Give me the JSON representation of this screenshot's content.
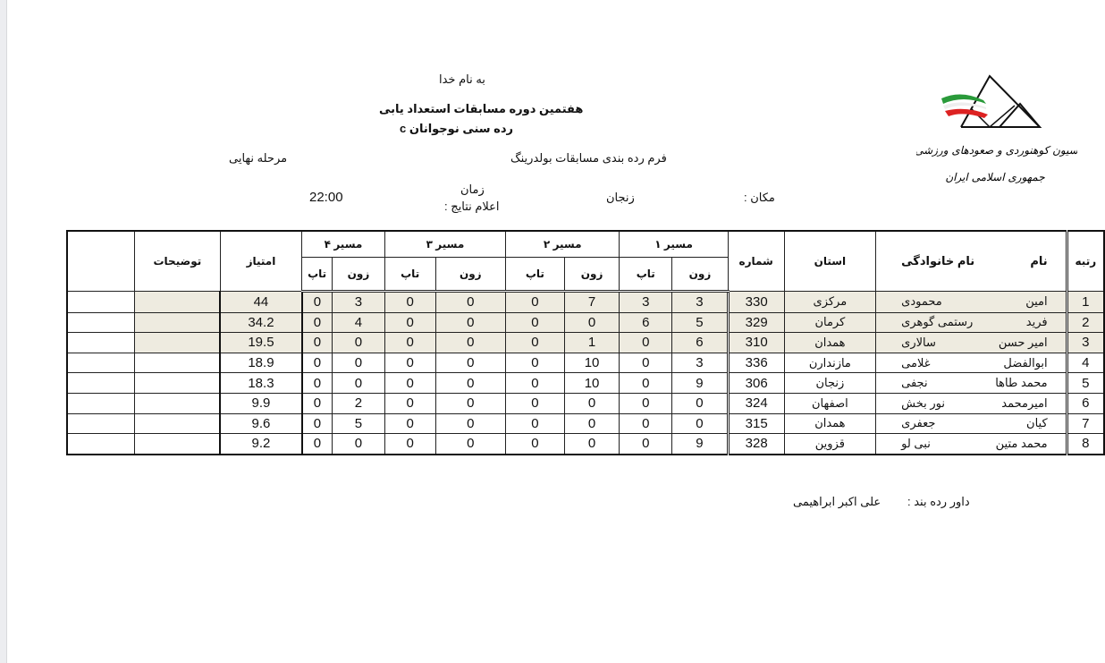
{
  "header": {
    "bismillah": "به نام خدا",
    "title": "هفتمین دوره مسابقات استعداد یابی",
    "subtitle": "رده سنی نوجوانان c",
    "form_title": "فرم رده بندی مسابقات بولدرینگ",
    "stage": "مرحله  نهایی",
    "location_label": "مکان :",
    "location_value": "زنجان",
    "time_label_1": "زمان",
    "time_label_2": "اعلام نتایج :",
    "time_value": "22:00",
    "logo_text_1": "فدراسیون کوهنوردی و صعودهای ورزشی",
    "logo_text_2": "جمهوری اسلامی ایران"
  },
  "table": {
    "headers": {
      "rank": "رتبه",
      "first_name": "نام",
      "last_name": "نام خانوادگی",
      "province": "استان",
      "number": "شماره",
      "route1": "مسیر ۱",
      "route2": "مسیر ۲",
      "route3": "مسیر ۳",
      "route4": "مسیر ۴",
      "zone": "زون",
      "top": "تاپ",
      "score": "امتیاز",
      "notes": "توضیحات"
    },
    "highlight_color": "#eeebe0",
    "rows": [
      {
        "rank": "1",
        "first": "امین",
        "last": "محمودی",
        "province": "مرکزی",
        "number": "330",
        "z1": "3",
        "t1": "3",
        "z2": "7",
        "t2": "0",
        "z3": "0",
        "t3": "0",
        "z4": "3",
        "t4": "0",
        "score": "44",
        "highlight": true
      },
      {
        "rank": "2",
        "first": "فرید",
        "last": "رستمی گوهری",
        "province": "کرمان",
        "number": "329",
        "z1": "5",
        "t1": "6",
        "z2": "0",
        "t2": "0",
        "z3": "0",
        "t3": "0",
        "z4": "4",
        "t4": "0",
        "score": "34.2",
        "highlight": true
      },
      {
        "rank": "3",
        "first": "امیر حسن",
        "last": "سالاری",
        "province": "همدان",
        "number": "310",
        "z1": "6",
        "t1": "0",
        "z2": "1",
        "t2": "0",
        "z3": "0",
        "t3": "0",
        "z4": "0",
        "t4": "0",
        "score": "19.5",
        "highlight": true
      },
      {
        "rank": "4",
        "first": "ابوالفضل",
        "last": "غلامی",
        "province": "مازندارن",
        "number": "336",
        "z1": "3",
        "t1": "0",
        "z2": "10",
        "t2": "0",
        "z3": "0",
        "t3": "0",
        "z4": "0",
        "t4": "0",
        "score": "18.9",
        "highlight": false
      },
      {
        "rank": "5",
        "first": "محمد طاها",
        "last": "نجفی",
        "province": "زنجان",
        "number": "306",
        "z1": "9",
        "t1": "0",
        "z2": "10",
        "t2": "0",
        "z3": "0",
        "t3": "0",
        "z4": "0",
        "t4": "0",
        "score": "18.3",
        "highlight": false
      },
      {
        "rank": "6",
        "first": "امیرمحمد",
        "last": "نور بخش",
        "province": "اصفهان",
        "number": "324",
        "z1": "0",
        "t1": "0",
        "z2": "0",
        "t2": "0",
        "z3": "0",
        "t3": "0",
        "z4": "2",
        "t4": "0",
        "score": "9.9",
        "highlight": false
      },
      {
        "rank": "7",
        "first": "کیان",
        "last": "جعفری",
        "province": "همدان",
        "number": "315",
        "z1": "0",
        "t1": "0",
        "z2": "0",
        "t2": "0",
        "z3": "0",
        "t3": "0",
        "z4": "5",
        "t4": "0",
        "score": "9.6",
        "highlight": false
      },
      {
        "rank": "8",
        "first": "محمد متین",
        "last": "نبی لو",
        "province": "قزوین",
        "number": "328",
        "z1": "9",
        "t1": "0",
        "z2": "0",
        "t2": "0",
        "z3": "0",
        "t3": "0",
        "z4": "0",
        "t4": "0",
        "score": "9.2",
        "highlight": false
      }
    ]
  },
  "footer": {
    "judge_label": "داور رده بند :",
    "judge_name": "علی اکبر ابراهیمی"
  }
}
